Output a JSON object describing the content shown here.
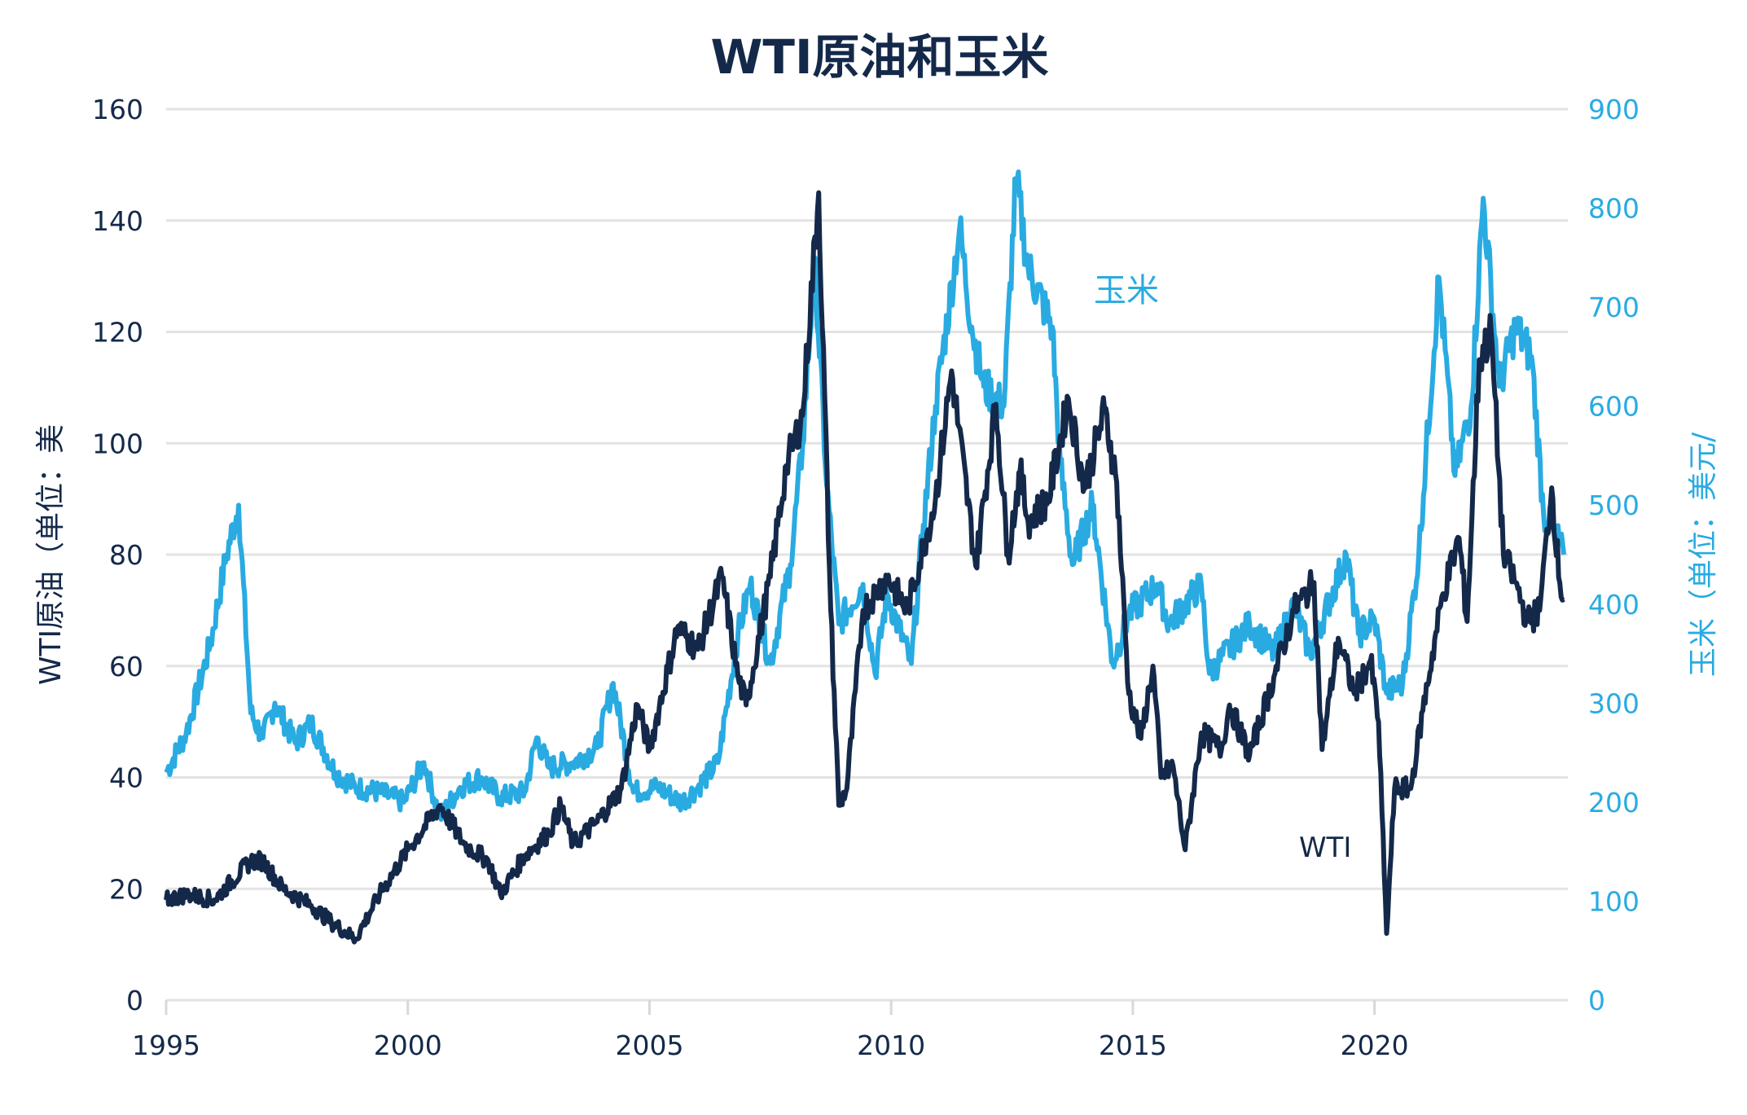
{
  "chart_data": {
    "type": "line",
    "title": "WTI原油和玉米",
    "xlabel": "",
    "ylabel_left": "WTI原油（单位：美",
    "ylabel_right": "玉米（单位：美元/",
    "xlim": [
      "1995-01",
      "2024-01"
    ],
    "x_ticks": [
      "1995",
      "2000",
      "2005",
      "2010",
      "2015",
      "2020"
    ],
    "ylim_left": [
      0,
      160
    ],
    "y_ticks_left": [
      "0",
      "20",
      "40",
      "60",
      "80",
      "100",
      "120",
      "140",
      "160"
    ],
    "ylim_right": [
      0,
      900
    ],
    "y_ticks_right": [
      "0",
      "100",
      "200",
      "300",
      "400",
      "500",
      "600",
      "700",
      "800",
      "900"
    ],
    "grid": true,
    "colors": {
      "wti": "#14294a",
      "corn": "#29abe2",
      "grid": "#e3e3e3"
    },
    "annotations": {
      "corn": "玉米",
      "wti": "WTI"
    },
    "series": [
      {
        "name": "WTI",
        "axis": "left",
        "points": [
          [
            "1995-01",
            18
          ],
          [
            "1995-06",
            19
          ],
          [
            "1996-01",
            18
          ],
          [
            "1996-10",
            25
          ],
          [
            "1997-01",
            25
          ],
          [
            "1997-06",
            20
          ],
          [
            "1998-01",
            17
          ],
          [
            "1998-06",
            14
          ],
          [
            "1998-12",
            11
          ],
          [
            "1999-06",
            19
          ],
          [
            "2000-01",
            27
          ],
          [
            "2000-09",
            35
          ],
          [
            "2001-03",
            28
          ],
          [
            "2001-09",
            25
          ],
          [
            "2001-12",
            19
          ],
          [
            "2002-06",
            26
          ],
          [
            "2002-12",
            30
          ],
          [
            "2003-03",
            35
          ],
          [
            "2003-06",
            28
          ],
          [
            "2003-12",
            32
          ],
          [
            "2004-06",
            38
          ],
          [
            "2004-10",
            53
          ],
          [
            "2005-01",
            45
          ],
          [
            "2005-08",
            67
          ],
          [
            "2006-01",
            63
          ],
          [
            "2006-07",
            76
          ],
          [
            "2006-11",
            58
          ],
          [
            "2007-01",
            53
          ],
          [
            "2007-07",
            76
          ],
          [
            "2007-11",
            96
          ],
          [
            "2008-03",
            105
          ],
          [
            "2008-07",
            145
          ],
          [
            "2008-10",
            70
          ],
          [
            "2008-12",
            35
          ],
          [
            "2009-02",
            38
          ],
          [
            "2009-06",
            70
          ],
          [
            "2009-12",
            76
          ],
          [
            "2010-05",
            70
          ],
          [
            "2010-12",
            90
          ],
          [
            "2011-04",
            113
          ],
          [
            "2011-10",
            78
          ],
          [
            "2012-03",
            107
          ],
          [
            "2012-06",
            80
          ],
          [
            "2012-09",
            95
          ],
          [
            "2012-11",
            86
          ],
          [
            "2013-04",
            90
          ],
          [
            "2013-09",
            108
          ],
          [
            "2014-01",
            92
          ],
          [
            "2014-06",
            106
          ],
          [
            "2014-09",
            93
          ],
          [
            "2014-12",
            55
          ],
          [
            "2015-03",
            47
          ],
          [
            "2015-06",
            60
          ],
          [
            "2015-08",
            40
          ],
          [
            "2015-11",
            42
          ],
          [
            "2016-02",
            27
          ],
          [
            "2016-06",
            48
          ],
          [
            "2016-11",
            45
          ],
          [
            "2017-01",
            53
          ],
          [
            "2017-06",
            44
          ],
          [
            "2017-12",
            58
          ],
          [
            "2018-05",
            70
          ],
          [
            "2018-10",
            75
          ],
          [
            "2018-12",
            45
          ],
          [
            "2019-04",
            65
          ],
          [
            "2019-08",
            55
          ],
          [
            "2019-12",
            61
          ],
          [
            "2020-02",
            50
          ],
          [
            "2020-04",
            12
          ],
          [
            "2020-06",
            38
          ],
          [
            "2020-10",
            38
          ],
          [
            "2021-01",
            52
          ],
          [
            "2021-06",
            73
          ],
          [
            "2021-10",
            83
          ],
          [
            "2021-12",
            68
          ],
          [
            "2022-03",
            115
          ],
          [
            "2022-06",
            120
          ],
          [
            "2022-09",
            80
          ],
          [
            "2022-12",
            75
          ],
          [
            "2023-03",
            68
          ],
          [
            "2023-06",
            70
          ],
          [
            "2023-09",
            92
          ],
          [
            "2023-11",
            75
          ],
          [
            "2023-12",
            72
          ]
        ]
      },
      {
        "name": "玉米",
        "axis": "right",
        "points": [
          [
            "1995-01",
            230
          ],
          [
            "1995-06",
            270
          ],
          [
            "1995-12",
            360
          ],
          [
            "1996-04",
            450
          ],
          [
            "1996-07",
            500
          ],
          [
            "1996-10",
            290
          ],
          [
            "1997-01",
            265
          ],
          [
            "1997-04",
            300
          ],
          [
            "1997-09",
            260
          ],
          [
            "1998-01",
            280
          ],
          [
            "1998-07",
            230
          ],
          [
            "1998-12",
            215
          ],
          [
            "1999-06",
            210
          ],
          [
            "1999-12",
            200
          ],
          [
            "2000-05",
            240
          ],
          [
            "2000-09",
            185
          ],
          [
            "2001-02",
            215
          ],
          [
            "2001-07",
            225
          ],
          [
            "2001-12",
            205
          ],
          [
            "2002-06",
            210
          ],
          [
            "2002-09",
            265
          ],
          [
            "2002-12",
            235
          ],
          [
            "2003-06",
            240
          ],
          [
            "2003-12",
            255
          ],
          [
            "2004-04",
            320
          ],
          [
            "2004-09",
            210
          ],
          [
            "2005-03",
            215
          ],
          [
            "2005-09",
            200
          ],
          [
            "2006-01",
            215
          ],
          [
            "2006-06",
            240
          ],
          [
            "2006-11",
            370
          ],
          [
            "2007-02",
            420
          ],
          [
            "2007-07",
            340
          ],
          [
            "2007-12",
            440
          ],
          [
            "2008-03",
            560
          ],
          [
            "2008-06",
            750
          ],
          [
            "2008-09",
            520
          ],
          [
            "2008-12",
            380
          ],
          [
            "2009-06",
            420
          ],
          [
            "2009-09",
            330
          ],
          [
            "2009-12",
            410
          ],
          [
            "2010-06",
            340
          ],
          [
            "2010-09",
            480
          ],
          [
            "2010-12",
            600
          ],
          [
            "2011-06",
            780
          ],
          [
            "2011-09",
            680
          ],
          [
            "2011-12",
            620
          ],
          [
            "2012-05",
            600
          ],
          [
            "2012-08",
            830
          ],
          [
            "2012-11",
            740
          ],
          [
            "2013-05",
            680
          ],
          [
            "2013-07",
            540
          ],
          [
            "2013-10",
            440
          ],
          [
            "2014-03",
            500
          ],
          [
            "2014-08",
            340
          ],
          [
            "2014-12",
            390
          ],
          [
            "2015-07",
            420
          ],
          [
            "2015-10",
            380
          ],
          [
            "2016-06",
            420
          ],
          [
            "2016-08",
            330
          ],
          [
            "2017-06",
            380
          ],
          [
            "2017-12",
            350
          ],
          [
            "2018-05",
            400
          ],
          [
            "2018-09",
            350
          ],
          [
            "2019-06",
            450
          ],
          [
            "2019-09",
            370
          ],
          [
            "2020-01",
            385
          ],
          [
            "2020-04",
            310
          ],
          [
            "2020-08",
            320
          ],
          [
            "2020-12",
            450
          ],
          [
            "2021-05",
            730
          ],
          [
            "2021-09",
            530
          ],
          [
            "2022-01",
            600
          ],
          [
            "2022-04",
            810
          ],
          [
            "2022-08",
            620
          ],
          [
            "2022-12",
            680
          ],
          [
            "2023-04",
            650
          ],
          [
            "2023-07",
            490
          ],
          [
            "2023-10",
            470
          ],
          [
            "2023-12",
            450
          ]
        ]
      }
    ]
  }
}
